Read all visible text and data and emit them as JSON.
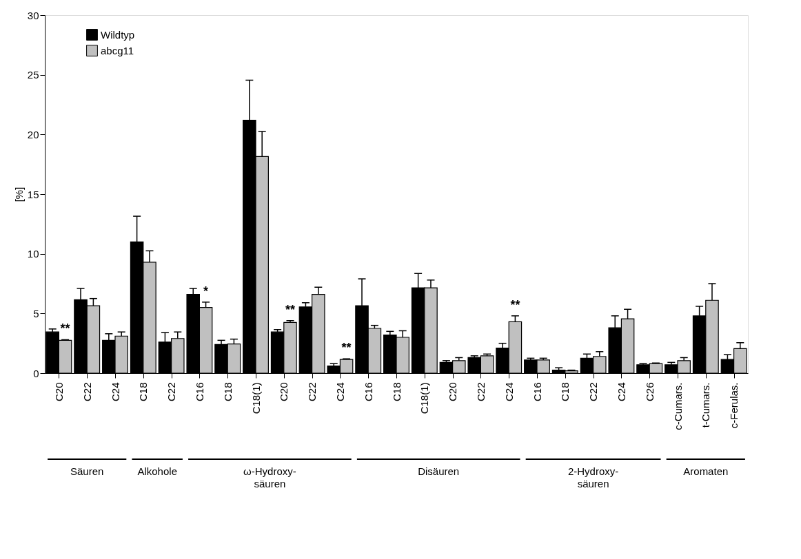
{
  "chart_data": {
    "type": "bar",
    "ylabel": "[%]",
    "categories": [
      "C20",
      "C22",
      "C24",
      "C18",
      "C22",
      "C16",
      "C18",
      "C18(1)",
      "C20",
      "C22",
      "C24",
      "C16",
      "C18",
      "C18(1)",
      "C20",
      "C22",
      "C24",
      "C16",
      "C18",
      "C22",
      "C24",
      "C26",
      "c-Cumars.",
      "t-Cumars.",
      "c-Ferulas."
    ],
    "series": [
      {
        "name": "Wildtyp",
        "color": "#000000",
        "values": [
          3.45,
          6.15,
          2.75,
          11.0,
          2.6,
          6.6,
          2.4,
          21.2,
          3.45,
          5.55,
          0.6,
          5.65,
          3.2,
          7.15,
          0.9,
          1.3,
          2.1,
          1.1,
          0.25,
          1.25,
          3.8,
          0.7,
          0.7,
          4.8,
          1.15
        ],
        "errors": [
          0.25,
          0.95,
          0.55,
          2.15,
          0.8,
          0.5,
          0.35,
          3.35,
          0.2,
          0.35,
          0.2,
          2.25,
          0.3,
          1.2,
          0.15,
          0.15,
          0.4,
          0.15,
          0.2,
          0.35,
          1.0,
          0.1,
          0.2,
          0.8,
          0.4
        ]
      },
      {
        "name": "abcg11",
        "color": "#c0c0c0",
        "values": [
          2.75,
          5.65,
          3.1,
          9.3,
          2.9,
          5.5,
          2.45,
          18.15,
          4.25,
          6.6,
          1.15,
          3.75,
          3.0,
          7.15,
          1.05,
          1.45,
          4.3,
          1.1,
          0.2,
          1.4,
          4.55,
          0.8,
          1.05,
          6.1,
          2.05
        ],
        "errors": [
          0.05,
          0.6,
          0.35,
          0.95,
          0.55,
          0.45,
          0.4,
          2.1,
          0.15,
          0.6,
          0.05,
          0.25,
          0.55,
          0.65,
          0.25,
          0.15,
          0.5,
          0.15,
          0.05,
          0.4,
          0.8,
          0.05,
          0.25,
          1.4,
          0.5
        ],
        "value_labels": [
          "**",
          null,
          null,
          null,
          null,
          "*",
          null,
          null,
          "**",
          null,
          "**",
          null,
          null,
          null,
          null,
          null,
          "**",
          null,
          null,
          null,
          null,
          null,
          null,
          null,
          null
        ]
      }
    ],
    "annotations": [
      "Säuren",
      "Alkohole",
      "ω-Hydroxy-säuren",
      "Disäuren",
      "2-Hydroxy-säuren",
      "Aromaten"
    ],
    "ylim": [
      0,
      30
    ],
    "yticks": [
      0,
      5,
      10,
      15,
      20,
      25,
      30
    ],
    "grid": false,
    "legend": "top left"
  }
}
